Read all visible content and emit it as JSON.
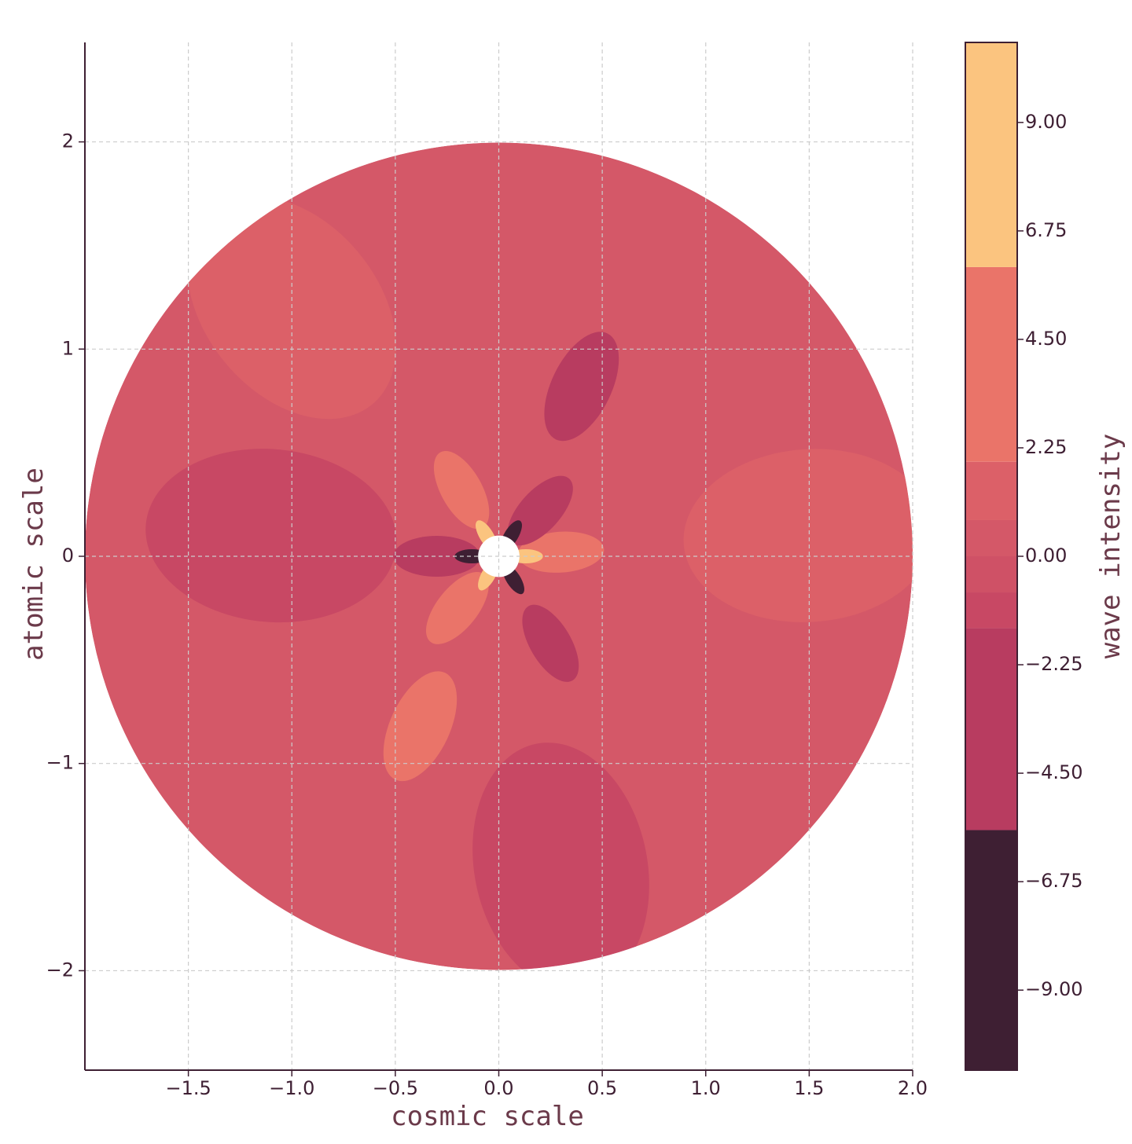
{
  "chart_data": {
    "type": "contour",
    "x_label": "cosmic scale",
    "y_label": "atomic scale",
    "colorbar_label": "wave intensity",
    "xlim": [
      -2,
      2
    ],
    "ylim": [
      -2.48,
      2.48
    ],
    "xticks": [
      {
        "value": -1.5,
        "label": "−1.5"
      },
      {
        "value": -1.0,
        "label": "−1.0"
      },
      {
        "value": -0.5,
        "label": "−0.5"
      },
      {
        "value": 0.0,
        "label": "0.0"
      },
      {
        "value": 0.5,
        "label": "0.5"
      },
      {
        "value": 1.0,
        "label": "1.0"
      },
      {
        "value": 1.5,
        "label": "1.5"
      },
      {
        "value": 2.0,
        "label": "2.0"
      }
    ],
    "yticks": [
      {
        "value": -2,
        "label": "−2"
      },
      {
        "value": -1,
        "label": "−1"
      },
      0,
      1,
      2
    ],
    "grid": true,
    "domain": {
      "r_inner": 0.1,
      "r_outer": 2
    },
    "background_value": 0.3,
    "levels": [
      -10.66,
      -5.68,
      -1.49,
      -0.75,
      0,
      0.75,
      1.96,
      6.0,
      10.66
    ],
    "colors": [
      "#3e1f33",
      "#b83c60",
      "#c84864",
      "#cf5166",
      "#d45868",
      "#dc6068",
      "#ea7469",
      "#fbc47f"
    ],
    "clim": [
      -10.66,
      10.66
    ],
    "cticks": [
      {
        "value": 9,
        "label": "9.00"
      },
      {
        "value": 6.75,
        "label": "6.75"
      },
      {
        "value": 4.5,
        "label": "4.50"
      },
      {
        "value": 2.25,
        "label": "2.25"
      },
      {
        "value": 0,
        "label": "0.00"
      },
      {
        "value": -2.25,
        "label": "−2.25"
      },
      {
        "value": -4.5,
        "label": "−4.50"
      },
      {
        "value": -6.75,
        "label": "−6.75"
      },
      {
        "value": -9,
        "label": "−9.00"
      }
    ],
    "blobs": [
      {
        "x": -1.0,
        "y": 1.2,
        "value": 1.2
      },
      {
        "x": 1.5,
        "y": 0.1,
        "value": 1.2
      },
      {
        "x": 0.3,
        "y": -1.5,
        "value": -1.0
      },
      {
        "x": -1.1,
        "y": 0.1,
        "value": -1.0
      },
      {
        "x": 0.4,
        "y": 0.82,
        "value": -3
      },
      {
        "x": -0.38,
        "y": -0.82,
        "value": 3.5
      },
      {
        "x": -0.18,
        "y": 0.32,
        "value": 3.5
      },
      {
        "x": 0.3,
        "y": 0.02,
        "value": 3.5
      },
      {
        "x": -0.2,
        "y": -0.25,
        "value": 3.5
      },
      {
        "x": 0.2,
        "y": 0.22,
        "value": -3
      },
      {
        "x": -0.3,
        "y": 0.0,
        "value": -3
      },
      {
        "x": 0.25,
        "y": -0.42,
        "value": -3
      },
      {
        "x": -0.06,
        "y": 0.1,
        "value": 8
      },
      {
        "x": 0.13,
        "y": 0.0,
        "value": 8
      },
      {
        "x": -0.05,
        "y": -0.09,
        "value": 8
      },
      {
        "x": 0.06,
        "y": 0.1,
        "value": -8
      },
      {
        "x": -0.13,
        "y": 0.0,
        "value": -8
      },
      {
        "x": 0.07,
        "y": -0.11,
        "value": -8
      }
    ]
  }
}
